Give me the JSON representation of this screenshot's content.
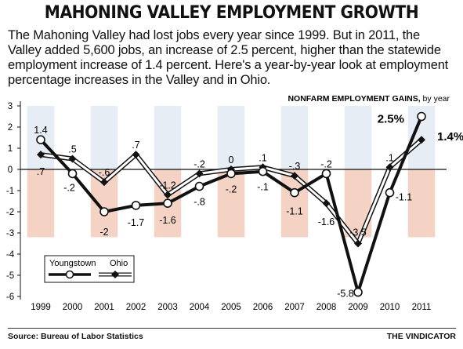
{
  "header": {
    "title": "MAHONING VALLEY EMPLOYMENT GROWTH",
    "intro": "The Mahoning Valley had lost jobs every year since 1999. But in 2011, the Valley added 5,600 jobs, an increase of 2.5 percent, higher than the statewide employment increase of 1.4 percent. Here's a year-by-year look at employment percentage increases in the Valley and in Ohio."
  },
  "footer": {
    "source": "Source: Bureau of Labor Statistics",
    "credit": "THE VINDICATOR"
  },
  "chart_data": {
    "type": "line",
    "subtitle_bold": "NONFARM EMPLOYMENT GAINS,",
    "subtitle_light": " by year",
    "categories": [
      "1999",
      "2000",
      "2001",
      "2002",
      "2003",
      "2004",
      "2005",
      "2006",
      "2007",
      "2008",
      "2009",
      "2010",
      "2011"
    ],
    "ylim": [
      -6,
      3
    ],
    "yticks": [
      3,
      2,
      1,
      0,
      -1,
      -2,
      -3,
      -4,
      -5,
      -6
    ],
    "series": [
      {
        "name": "Youngstown",
        "marker": "circle",
        "values": [
          1.4,
          -0.2,
          -2,
          -1.7,
          -1.6,
          -0.8,
          -0.2,
          -0.1,
          -1.1,
          -0.2,
          -5.8,
          -1.1,
          2.5
        ],
        "labels": [
          "1.4",
          "-.2",
          "-2",
          "-1.7",
          "-1.6",
          "-.8",
          "-.2",
          "-.1",
          "-1.1",
          "-.2",
          "-5.8",
          "-1.1",
          "2.5%"
        ]
      },
      {
        "name": "Ohio",
        "marker": "diamond",
        "values": [
          0.7,
          0.5,
          -0.6,
          0.7,
          -1.2,
          -0.2,
          0,
          0.1,
          -0.3,
          -1.6,
          -3.5,
          0.1,
          1.4
        ],
        "labels": [
          ".7",
          ".5",
          "-.6",
          ".7",
          "-1.2",
          "-.2",
          "0",
          ".1",
          "-.3",
          "-1.6",
          "-3.5",
          ".1",
          "1.4%"
        ]
      }
    ],
    "colors": {
      "positive_band": "#e6edf4",
      "negative_band": "#f4d3c4",
      "axis": "#111111"
    },
    "legend_position": "bottom-left",
    "grid": false
  }
}
